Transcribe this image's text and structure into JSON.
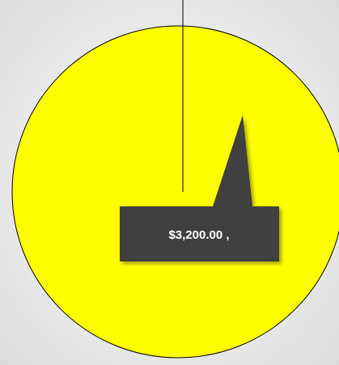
{
  "chart_data": {
    "type": "pie",
    "values": [
      3200
    ],
    "value_labels": [
      "$3,200.00 ,"
    ],
    "colors": [
      "#ffff00"
    ]
  }
}
